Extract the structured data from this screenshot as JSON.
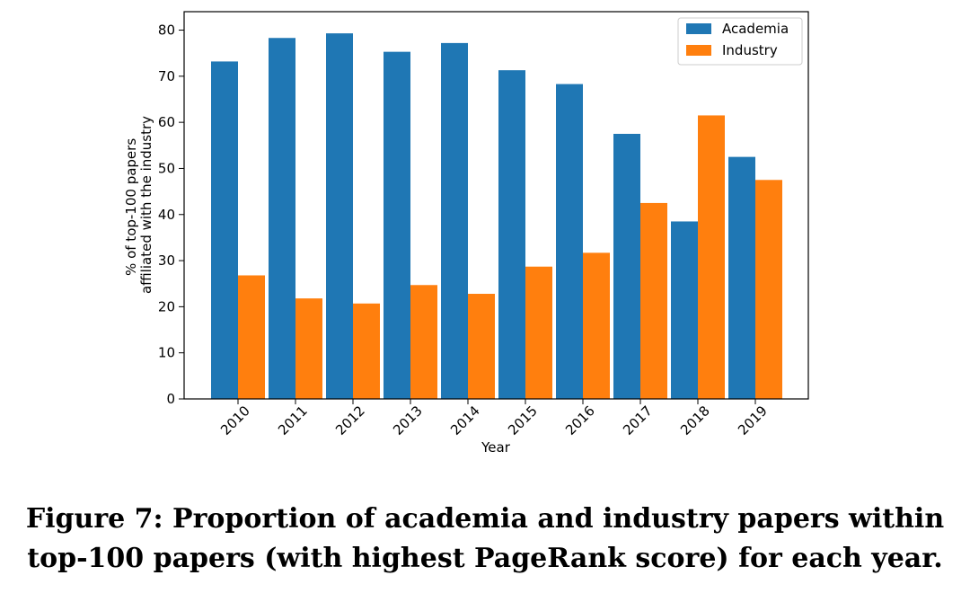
{
  "chart_data": {
    "type": "bar",
    "categories": [
      "2010",
      "2011",
      "2012",
      "2013",
      "2014",
      "2015",
      "2016",
      "2017",
      "2018",
      "2019"
    ],
    "series": [
      {
        "name": "Academia",
        "color": "#1f77b4",
        "values": [
          73.2,
          78.3,
          79.3,
          75.3,
          77.2,
          71.3,
          68.3,
          57.5,
          38.5,
          52.5
        ]
      },
      {
        "name": "Industry",
        "color": "#ff7f0e",
        "values": [
          26.8,
          21.8,
          20.7,
          24.7,
          22.8,
          28.7,
          31.7,
          42.5,
          61.5,
          47.5
        ]
      }
    ],
    "xlabel": "Year",
    "ylabel": [
      "% of top-100 papers",
      "affiliated with the industry"
    ],
    "ylim": [
      0,
      84
    ],
    "yticks": [
      0,
      10,
      20,
      30,
      40,
      50,
      60,
      70,
      80
    ],
    "legend": "top-right",
    "grid": false
  },
  "caption": {
    "line1": "Figure 7: Proportion of academia and industry papers within",
    "line2": "top-100 papers (with highest PageRank score) for each year."
  }
}
